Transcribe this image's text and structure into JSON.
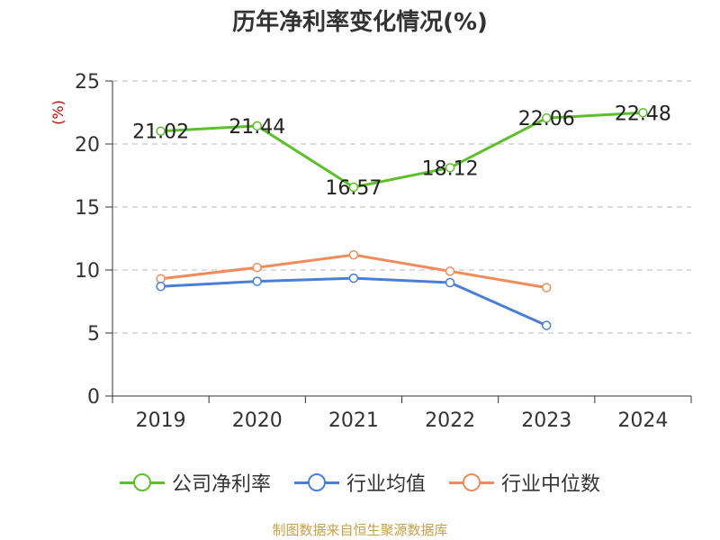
{
  "chart_data": {
    "type": "line",
    "title": "历年净利率变化情况(%)",
    "unit_label": "(%)",
    "categories": [
      "2019",
      "2020",
      "2021",
      "2022",
      "2023",
      "2024"
    ],
    "ylim": [
      0,
      25
    ],
    "yticks": [
      0,
      5,
      10,
      15,
      20,
      25
    ],
    "grid": true,
    "legend_position": "bottom",
    "series": [
      {
        "name": "公司净利率",
        "color": "#5cc02a",
        "values": [
          21.02,
          21.44,
          16.57,
          18.12,
          22.06,
          22.48
        ],
        "labels": [
          "21.02",
          "21.44",
          "16.57",
          "18.12",
          "22.06",
          "22.48"
        ]
      },
      {
        "name": "行业均值",
        "color": "#4a7fd8",
        "values": [
          8.7,
          9.1,
          9.35,
          9.0,
          5.6,
          null
        ]
      },
      {
        "name": "行业中位数",
        "color": "#f28b5a",
        "values": [
          9.3,
          10.2,
          11.2,
          9.9,
          8.6,
          null
        ]
      }
    ]
  },
  "source": "制图数据来自恒生聚源数据库"
}
